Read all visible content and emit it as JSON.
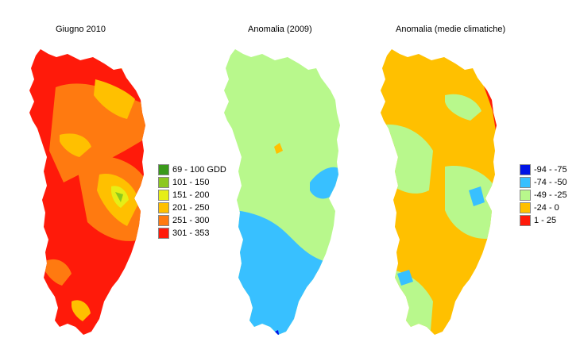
{
  "maps": [
    {
      "title": "Giugno 2010",
      "legend": [
        {
          "label": "69 - 100 GDD",
          "color": "#3a9a1a"
        },
        {
          "label": "101 - 150",
          "color": "#8cc81e"
        },
        {
          "label": "151 - 200",
          "color": "#e6ee16"
        },
        {
          "label": "201 - 250",
          "color": "#ffc000"
        },
        {
          "label": "251 - 300",
          "color": "#ff7a10"
        },
        {
          "label": "301 - 353",
          "color": "#ff1a0a"
        }
      ]
    },
    {
      "title": "Anomalia (2009)",
      "legend": []
    },
    {
      "title": "Anomalia (medie climatiche)",
      "legend": [
        {
          "label": "-94 - -75",
          "color": "#0014e6"
        },
        {
          "label": "-74 - -50",
          "color": "#38c0ff"
        },
        {
          "label": "-49 - -25",
          "color": "#b8f88c"
        },
        {
          "label": "-24 - 0",
          "color": "#ffc000"
        },
        {
          "label": "1 - 25",
          "color": "#ff1a0a"
        }
      ]
    }
  ]
}
